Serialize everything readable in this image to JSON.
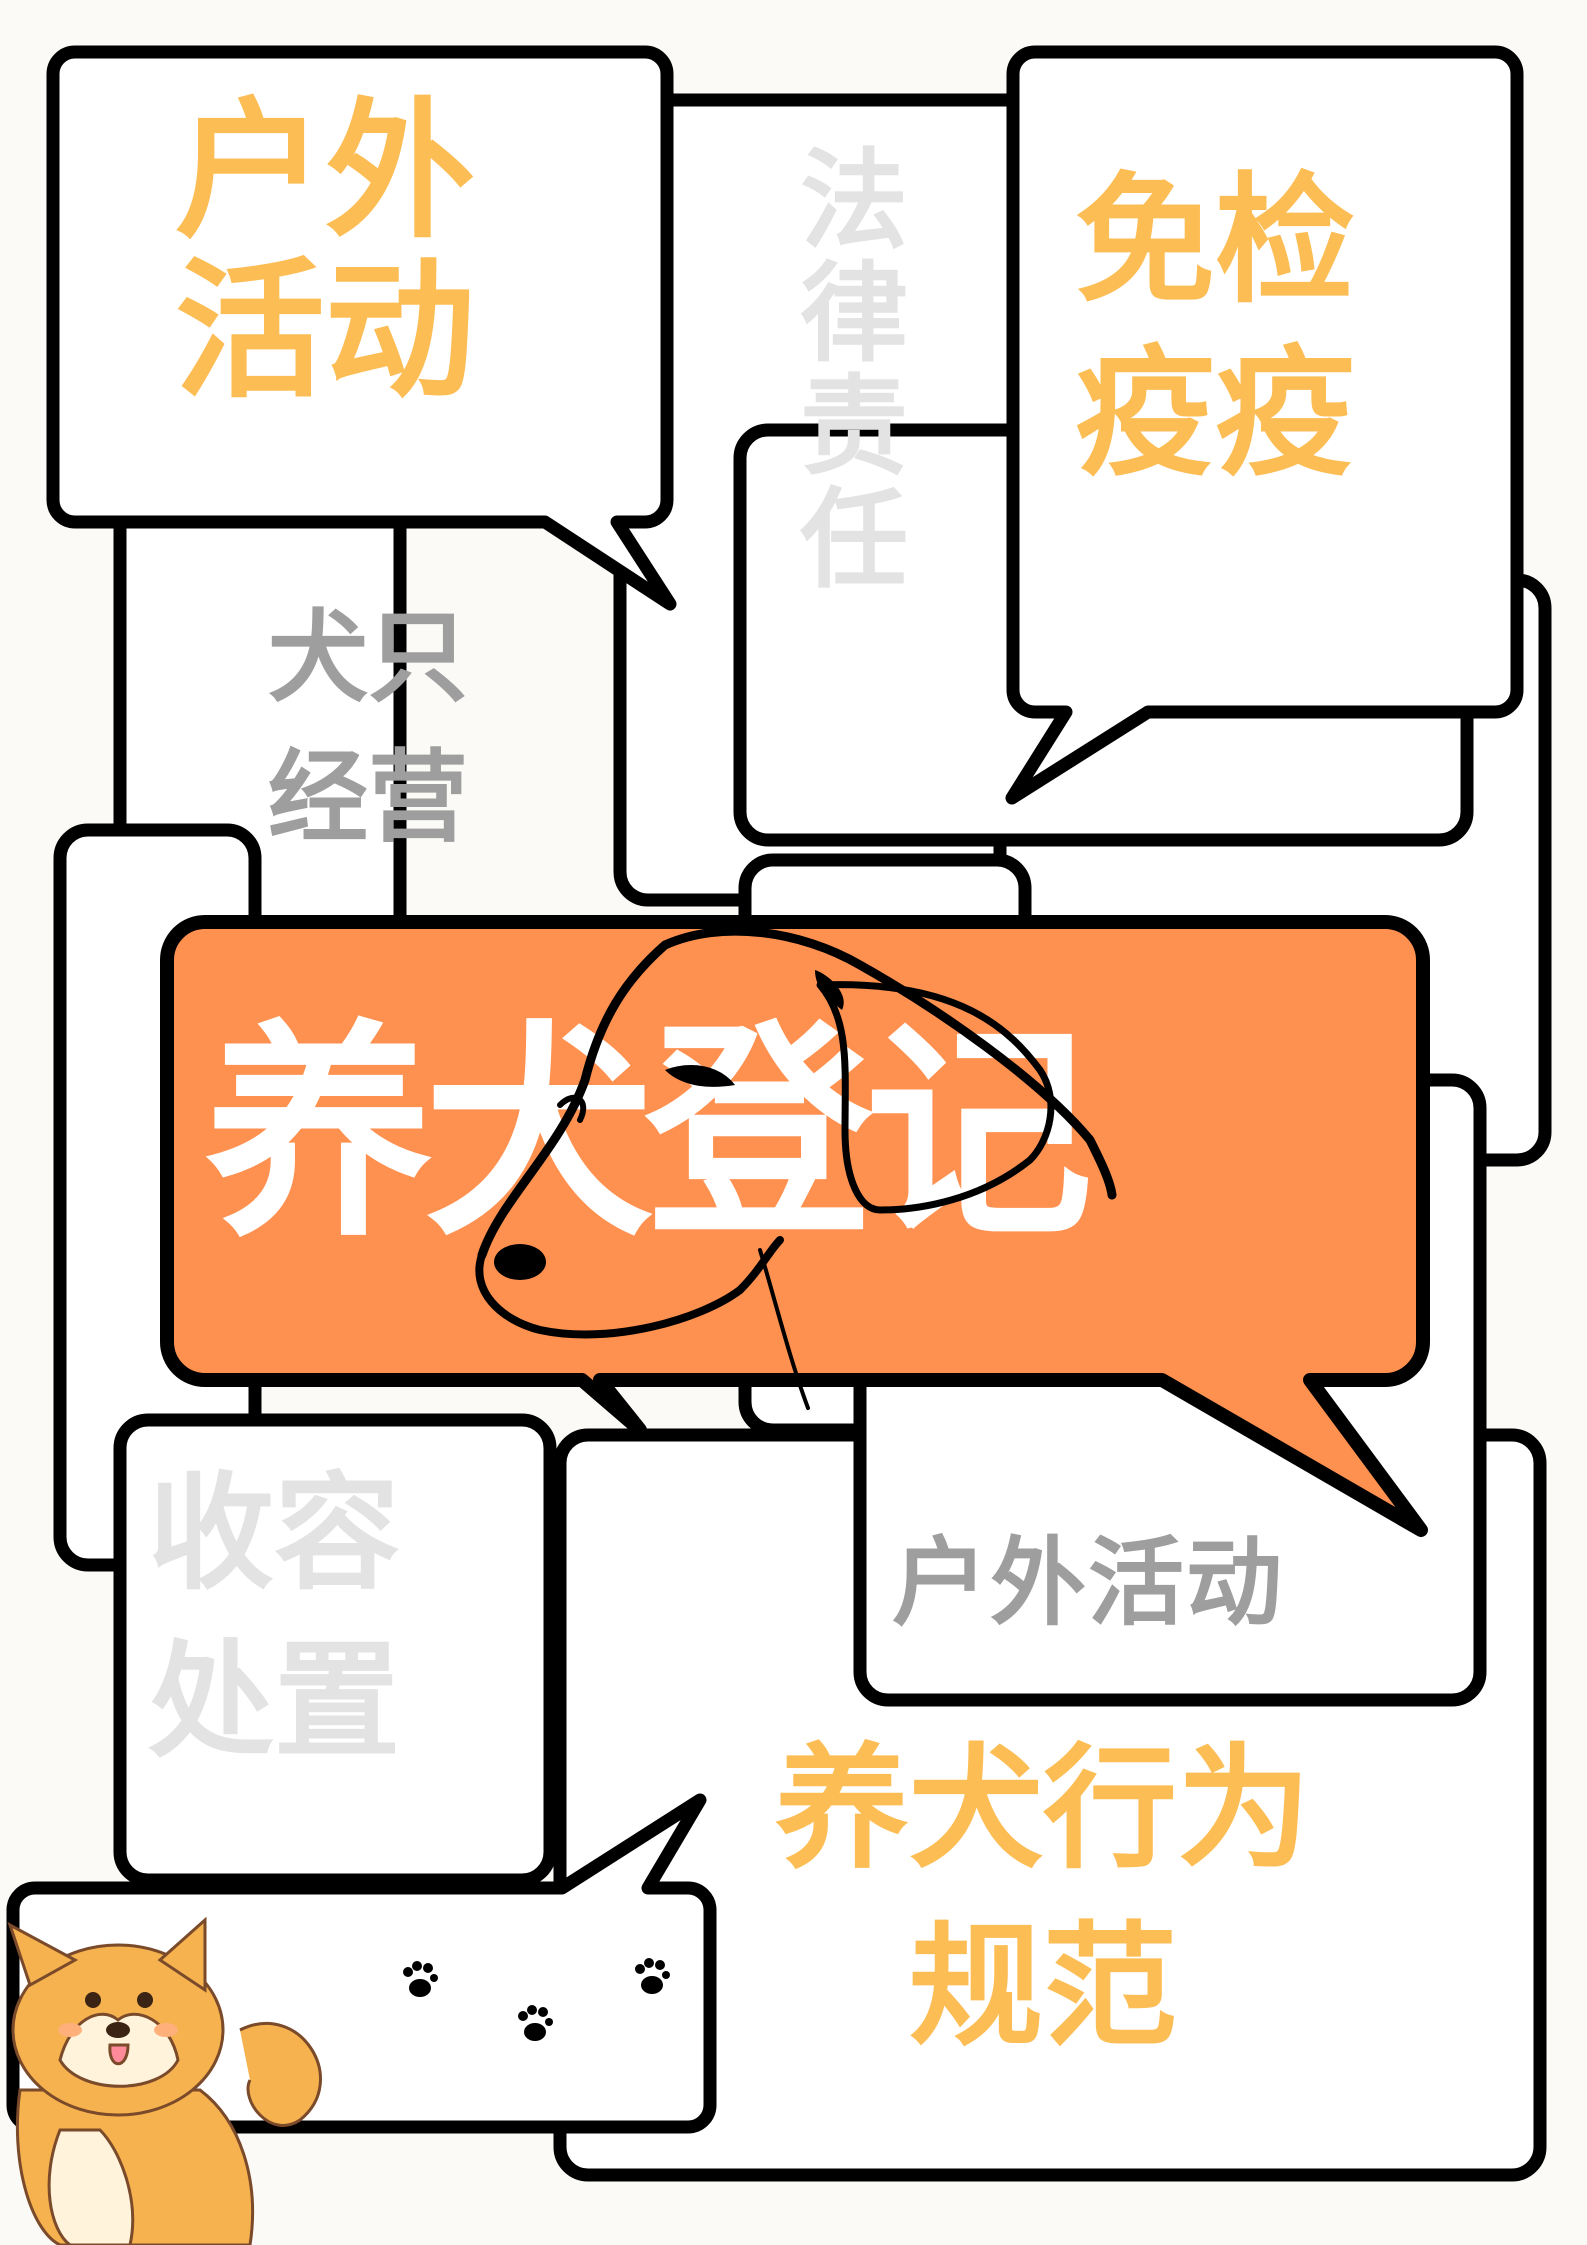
{
  "poster": {
    "main_title": "养犬登记",
    "blocks": {
      "outdoor_top": [
        "户外",
        "活动"
      ],
      "legal": [
        "法",
        "律",
        "责",
        "任"
      ],
      "exempt": [
        "免检",
        "疫疫"
      ],
      "dog_business": [
        "犬只",
        "经营"
      ],
      "outdoor_small": "户外活动",
      "shelter": [
        "收容",
        "处置"
      ],
      "behavior": [
        "养犬行为",
        "规范"
      ]
    }
  },
  "colors": {
    "background": "#fbfaf6",
    "accent_orange": "#ff9150",
    "heading_yellow": "#fdbd55",
    "text_gray": "#9e9e9e",
    "text_light_gray": "#e3e3e3",
    "outline": "#000000"
  },
  "icons": [
    "dog-head-line-icon",
    "shiba-dog-icon",
    "paw-print-icon"
  ]
}
